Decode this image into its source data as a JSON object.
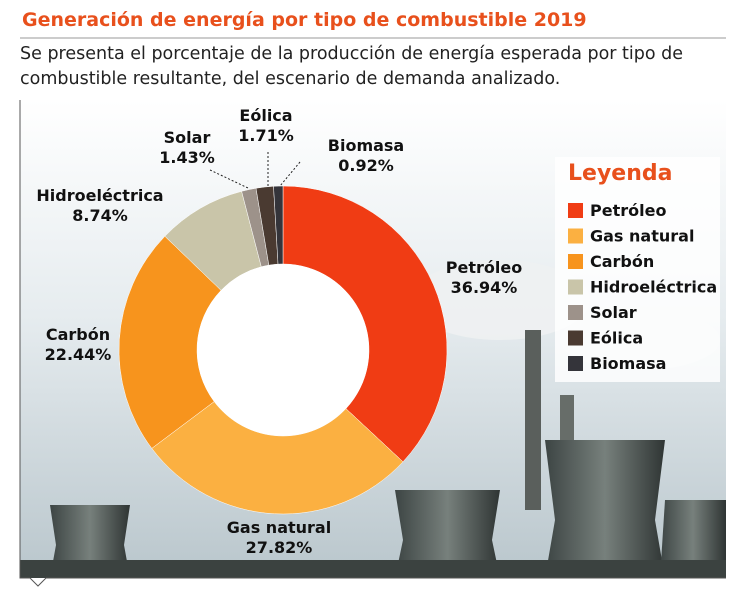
{
  "chart_data": {
    "type": "donut",
    "title": "Generación de energía por tipo de combustible 2019",
    "subtitle": "Se presenta el porcentaje de la producción de energía esperada por tipo de combustible resultante, del escenario de demanda analizado.",
    "legend_title": "Leyenda",
    "categories": [
      "Petróleo",
      "Gas natural",
      "Carbón",
      "Hidroeléctrica",
      "Solar",
      "Eólica",
      "Biomasa"
    ],
    "values": [
      36.94,
      27.82,
      22.44,
      8.74,
      1.43,
      1.71,
      0.92
    ],
    "value_labels": [
      "36.94%",
      "27.82%",
      "22.44%",
      "8.74%",
      "1.43%",
      "1.71%",
      "0.92%"
    ],
    "colors": [
      "#f03c14",
      "#fbb041",
      "#f7941d",
      "#c9c5a9",
      "#9d928a",
      "#4a3a31",
      "#34343a"
    ],
    "legend": "right"
  }
}
